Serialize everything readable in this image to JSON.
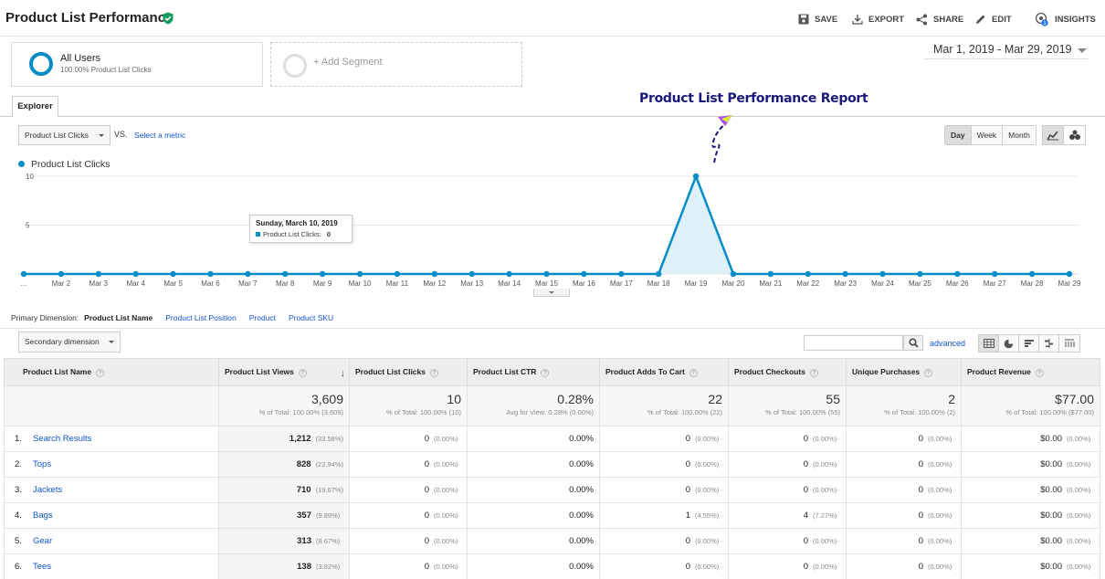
{
  "header": {
    "title": "Product List Performance",
    "actions": {
      "save": "SAVE",
      "export": "EXPORT",
      "share": "SHARE",
      "edit": "EDIT",
      "insights": "INSIGHTS",
      "insights_badge": "1"
    }
  },
  "segments": {
    "active": {
      "name": "All Users",
      "sub": "100.00% Product List Clicks"
    },
    "add_label": "+ Add Segment"
  },
  "date_range": "Mar 1, 2019 - Mar 29, 2019",
  "tabs": {
    "explorer": "Explorer"
  },
  "annotation": "Product List Performance Report",
  "metric_bar": {
    "metric": "Product List Clicks",
    "vs": "VS.",
    "select_metric": "Select a metric",
    "granularity": [
      "Day",
      "Week",
      "Month"
    ],
    "active_granularity": "Day"
  },
  "legend": {
    "series_label": "Product List Clicks"
  },
  "tooltip": {
    "date": "Sunday, March 10, 2019",
    "label": "Product List Clicks:",
    "value": "0"
  },
  "chart_data": {
    "type": "area",
    "series": [
      {
        "name": "Product List Clicks",
        "color": "#058dc7",
        "values": [
          0,
          0,
          0,
          0,
          0,
          0,
          0,
          0,
          0,
          0,
          0,
          0,
          0,
          0,
          0,
          0,
          0,
          0,
          10,
          0,
          0,
          0,
          0,
          0,
          0,
          0,
          0,
          0,
          0
        ]
      }
    ],
    "x_labels": [
      "...",
      "Mar 2",
      "Mar 3",
      "Mar 4",
      "Mar 5",
      "Mar 6",
      "Mar 7",
      "Mar 8",
      "Mar 9",
      "Mar 10",
      "Mar 11",
      "Mar 12",
      "Mar 13",
      "Mar 14",
      "Mar 15",
      "Mar 16",
      "Mar 17",
      "Mar 18",
      "Mar 19",
      "Mar 20",
      "Mar 21",
      "Mar 22",
      "Mar 23",
      "Mar 24",
      "Mar 25",
      "Mar 26",
      "Mar 27",
      "Mar 28",
      "Mar 29"
    ],
    "y_ticks": [
      "10",
      "5"
    ],
    "ylim": [
      0,
      10
    ]
  },
  "primary_dimension": {
    "label": "Primary Dimension:",
    "active": "Product List Name",
    "options": [
      "Product List Position",
      "Product",
      "Product SKU"
    ]
  },
  "secondary_dimension": "Secondary dimension",
  "advanced_label": "advanced",
  "table": {
    "columns": [
      "Product List Name",
      "Product List Views",
      "Product List Clicks",
      "Product List CTR",
      "Product Adds To Cart",
      "Product Checkouts",
      "Unique Purchases",
      "Product Revenue"
    ],
    "totals": [
      {
        "value": "3,609",
        "sub": "% of Total: 100.00% (3,609)"
      },
      {
        "value": "10",
        "sub": "% of Total: 100.00% (10)"
      },
      {
        "value": "0.28%",
        "sub": "Avg for View: 0.28% (0.00%)"
      },
      {
        "value": "22",
        "sub": "% of Total: 100.00% (22)"
      },
      {
        "value": "55",
        "sub": "% of Total: 100.00% (55)"
      },
      {
        "value": "2",
        "sub": "% of Total: 100.00% (2)"
      },
      {
        "value": "$77.00",
        "sub": "% of Total: 100.00% ($77.00)"
      }
    ],
    "rows": [
      {
        "idx": "1.",
        "name": "Search Results",
        "views": "1,212",
        "views_pct": "(33.58%)",
        "clicks": "0",
        "clicks_pct": "(0.00%)",
        "ctr": "0.00%",
        "adds": "0",
        "adds_pct": "(0.00%)",
        "checkouts": "0",
        "checkouts_pct": "(0.00%)",
        "purchases": "0",
        "purchases_pct": "(0.00%)",
        "revenue": "$0.00",
        "revenue_pct": "(0.00%)"
      },
      {
        "idx": "2.",
        "name": "Tops",
        "views": "828",
        "views_pct": "(22.94%)",
        "clicks": "0",
        "clicks_pct": "(0.00%)",
        "ctr": "0.00%",
        "adds": "0",
        "adds_pct": "(0.00%)",
        "checkouts": "0",
        "checkouts_pct": "(0.00%)",
        "purchases": "0",
        "purchases_pct": "(0.00%)",
        "revenue": "$0.00",
        "revenue_pct": "(0.00%)"
      },
      {
        "idx": "3.",
        "name": "Jackets",
        "views": "710",
        "views_pct": "(19.67%)",
        "clicks": "0",
        "clicks_pct": "(0.00%)",
        "ctr": "0.00%",
        "adds": "0",
        "adds_pct": "(0.00%)",
        "checkouts": "0",
        "checkouts_pct": "(0.00%)",
        "purchases": "0",
        "purchases_pct": "(0.00%)",
        "revenue": "$0.00",
        "revenue_pct": "(0.00%)"
      },
      {
        "idx": "4.",
        "name": "Bags",
        "views": "357",
        "views_pct": "(9.89%)",
        "clicks": "0",
        "clicks_pct": "(0.00%)",
        "ctr": "0.00%",
        "adds": "1",
        "adds_pct": "(4.55%)",
        "checkouts": "4",
        "checkouts_pct": "(7.27%)",
        "purchases": "0",
        "purchases_pct": "(0.00%)",
        "revenue": "$0.00",
        "revenue_pct": "(0.00%)"
      },
      {
        "idx": "5.",
        "name": "Gear",
        "views": "313",
        "views_pct": "(8.67%)",
        "clicks": "0",
        "clicks_pct": "(0.00%)",
        "ctr": "0.00%",
        "adds": "0",
        "adds_pct": "(0.00%)",
        "checkouts": "0",
        "checkouts_pct": "(0.00%)",
        "purchases": "0",
        "purchases_pct": "(0.00%)",
        "revenue": "$0.00",
        "revenue_pct": "(0.00%)"
      },
      {
        "idx": "6.",
        "name": "Tees",
        "views": "138",
        "views_pct": "(3.82%)",
        "clicks": "0",
        "clicks_pct": "(0.00%)",
        "ctr": "0.00%",
        "adds": "0",
        "adds_pct": "(0.00%)",
        "checkouts": "0",
        "checkouts_pct": "(0.00%)",
        "purchases": "0",
        "purchases_pct": "(0.00%)",
        "revenue": "$0.00",
        "revenue_pct": "(0.00%)"
      }
    ]
  }
}
